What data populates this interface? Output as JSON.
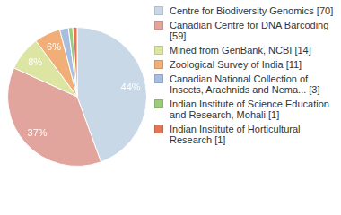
{
  "chart_data": {
    "type": "pie",
    "categories": [
      "Centre for Biodiversity Genomics [70]",
      "Canadian Centre for DNA Barcoding [59]",
      "Mined from GenBank, NCBI [14]",
      "Zoological Survey of India [11]",
      "Canadian National Collection of Insects, Arachnids and Nema... [3]",
      "Indian Institute of Science Education and Research, Mohali [1]",
      "Indian Institute of Horticultural Research [1]"
    ],
    "values": [
      44,
      37,
      8,
      6,
      2,
      1,
      1
    ],
    "value_labels": [
      "44%",
      "37%",
      "8%",
      "6%",
      null,
      null,
      null
    ],
    "colors": [
      "#c9d8e7",
      "#e2a59d",
      "#dde5a3",
      "#f1ae77",
      "#a6bfe0",
      "#9dcb7d",
      "#e07657"
    ],
    "data_labels": true,
    "legend": "right"
  }
}
